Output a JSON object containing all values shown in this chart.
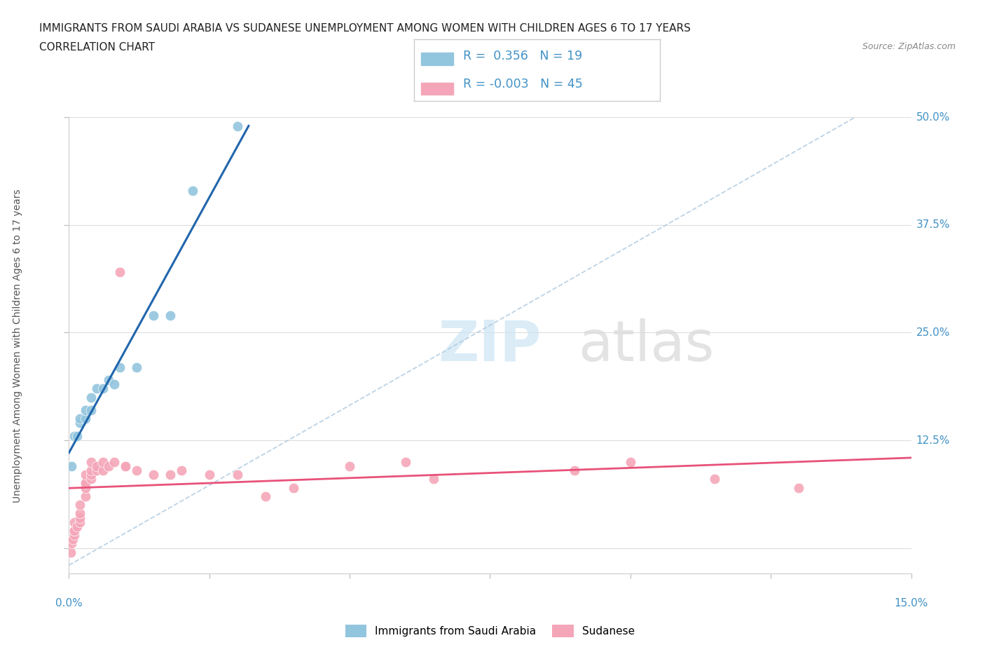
{
  "title": "IMMIGRANTS FROM SAUDI ARABIA VS SUDANESE UNEMPLOYMENT AMONG WOMEN WITH CHILDREN AGES 6 TO 17 YEARS",
  "subtitle": "CORRELATION CHART",
  "source": "Source: ZipAtlas.com",
  "ylabel_label": "Unemployment Among Women with Children Ages 6 to 17 years",
  "legend_label1": "Immigrants from Saudi Arabia",
  "legend_label2": "Sudanese",
  "r1": 0.356,
  "n1": 19,
  "r2": -0.003,
  "n2": 45,
  "color_blue": "#92c5de",
  "color_pink": "#f4a6b8",
  "color_line_blue": "#2166ac",
  "color_line_pink": "#e8527a",
  "xlim": [
    0,
    0.15
  ],
  "ylim": [
    -0.03,
    0.5
  ],
  "yticks": [
    0.0,
    0.125,
    0.25,
    0.375,
    0.5
  ],
  "ytick_labels": [
    "",
    "12.5%",
    "25.0%",
    "37.5%",
    "50.0%"
  ],
  "xticks": [
    0.0,
    0.025,
    0.05,
    0.075,
    0.1,
    0.125,
    0.15
  ],
  "saudi_x": [
    0.0005,
    0.001,
    0.0015,
    0.002,
    0.002,
    0.003,
    0.003,
    0.004,
    0.004,
    0.005,
    0.006,
    0.007,
    0.008,
    0.009,
    0.012,
    0.015,
    0.018,
    0.022,
    0.03
  ],
  "saudi_y": [
    0.095,
    0.13,
    0.13,
    0.145,
    0.15,
    0.15,
    0.16,
    0.16,
    0.175,
    0.185,
    0.185,
    0.195,
    0.19,
    0.21,
    0.21,
    0.27,
    0.27,
    0.415,
    0.49
  ],
  "sudanese_x": [
    0.0003,
    0.0005,
    0.0007,
    0.001,
    0.001,
    0.001,
    0.001,
    0.0015,
    0.002,
    0.002,
    0.002,
    0.002,
    0.003,
    0.003,
    0.003,
    0.003,
    0.003,
    0.004,
    0.004,
    0.004,
    0.004,
    0.005,
    0.005,
    0.006,
    0.006,
    0.007,
    0.008,
    0.009,
    0.01,
    0.01,
    0.012,
    0.015,
    0.018,
    0.02,
    0.025,
    0.03,
    0.035,
    0.04,
    0.05,
    0.065,
    0.09,
    0.1,
    0.115,
    0.13,
    0.06
  ],
  "sudanese_y": [
    -0.005,
    0.005,
    0.01,
    0.015,
    0.02,
    0.02,
    0.03,
    0.025,
    0.03,
    0.035,
    0.04,
    0.05,
    0.06,
    0.07,
    0.075,
    0.075,
    0.085,
    0.08,
    0.085,
    0.09,
    0.1,
    0.09,
    0.095,
    0.09,
    0.1,
    0.095,
    0.1,
    0.32,
    0.095,
    0.095,
    0.09,
    0.085,
    0.085,
    0.09,
    0.085,
    0.085,
    0.06,
    0.07,
    0.095,
    0.08,
    0.09,
    0.1,
    0.08,
    0.07,
    0.1
  ]
}
